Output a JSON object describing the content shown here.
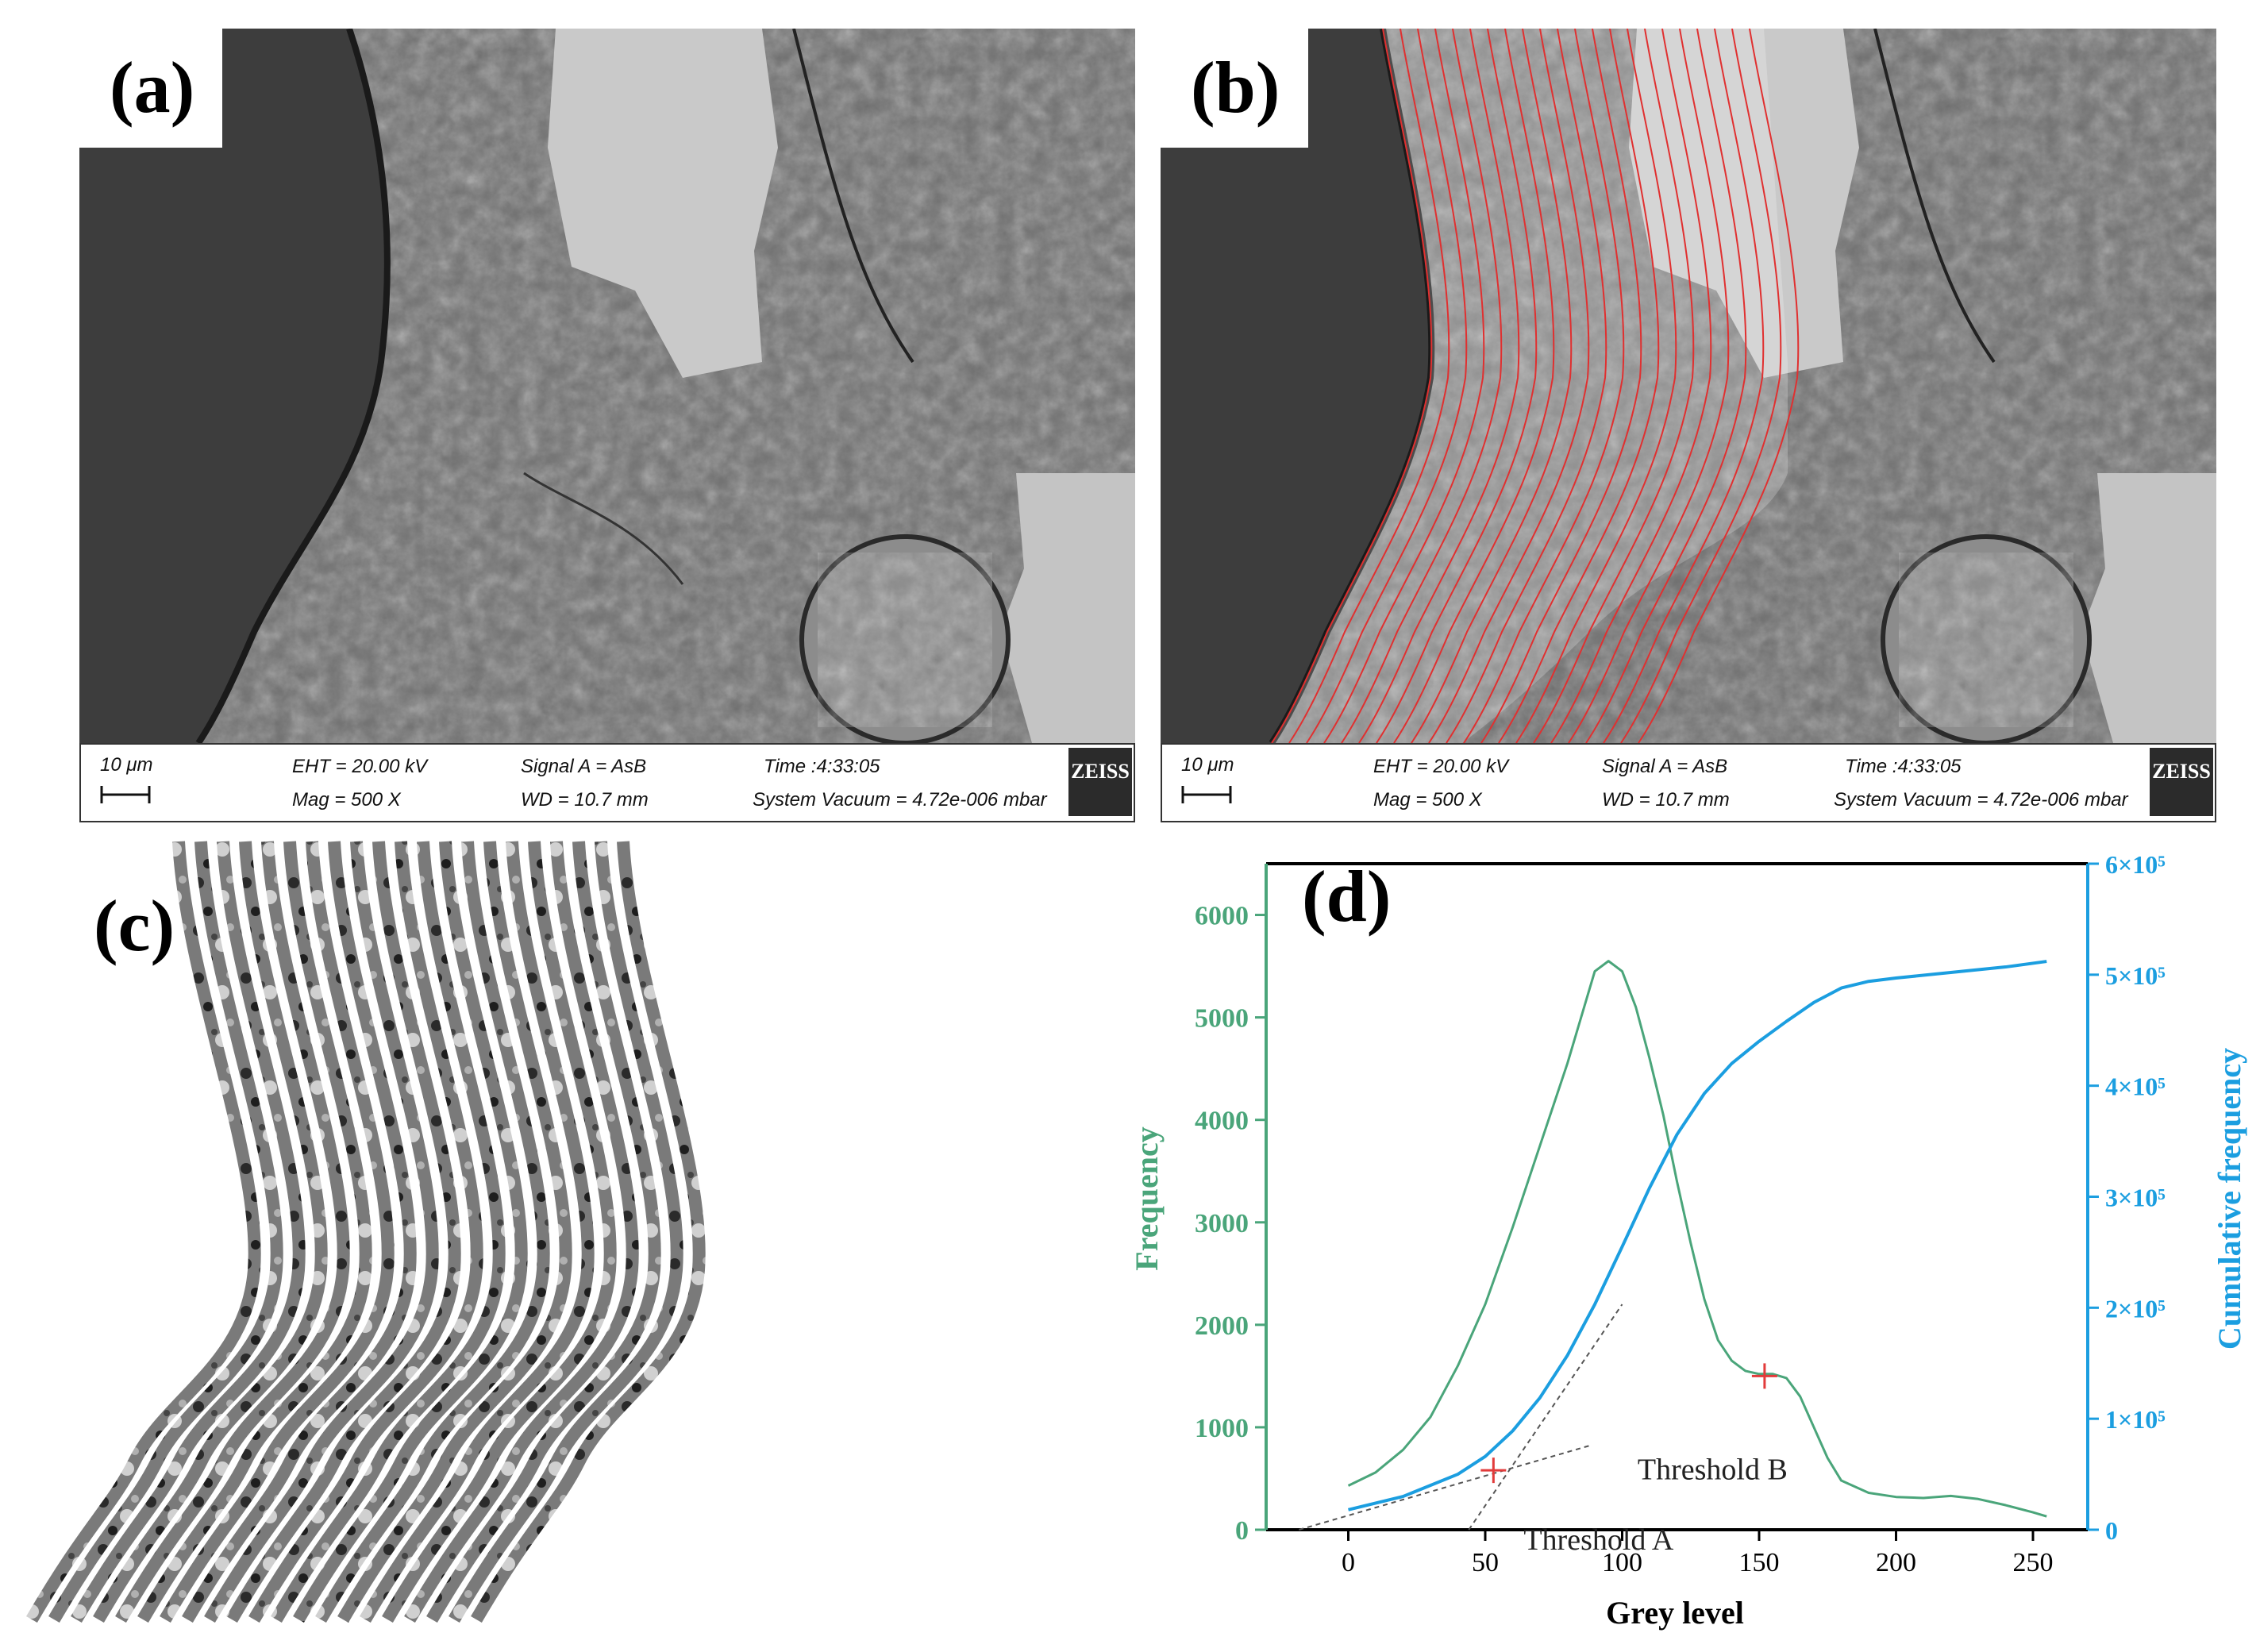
{
  "panels": {
    "a": {
      "label": "(a)"
    },
    "b": {
      "label": "(b)"
    },
    "c": {
      "label": "(c)"
    },
    "d": {
      "label": "(d)"
    }
  },
  "sem_databar": {
    "scale": "10 μm",
    "eht": "EHT = 20.00 kV",
    "signal": "Signal A = AsB",
    "time": "Time :4:33:05",
    "mag": "Mag =    500 X",
    "wd": "WD = 10.7 mm",
    "vacuum": "System Vacuum = 4.72e-006 mbar",
    "brand": "ZEISS"
  },
  "colors": {
    "frequency": "#4aa57a",
    "cumulative": "#1b9ee0",
    "threshold_marker": "#e23b3b",
    "overlay_lines": "#e03030"
  },
  "chart_data": {
    "type": "line",
    "xlabel": "Grey level",
    "ylabel": "Frequency",
    "y2label": "Cumulative frequency",
    "xlim": [
      -30,
      270
    ],
    "ylim": [
      0,
      6500
    ],
    "y2lim": [
      0,
      600000
    ],
    "xticks": [
      0,
      50,
      100,
      150,
      200,
      250
    ],
    "yticks": [
      0,
      1000,
      2000,
      3000,
      4000,
      5000,
      6000
    ],
    "y2ticks": [
      {
        "value": 0,
        "label": "0"
      },
      {
        "value": 100000,
        "label": "1×10⁵"
      },
      {
        "value": 200000,
        "label": "2×10⁵"
      },
      {
        "value": 300000,
        "label": "3×10⁵"
      },
      {
        "value": 400000,
        "label": "4×10⁵"
      },
      {
        "value": 500000,
        "label": "5×10⁵"
      },
      {
        "value": 600000,
        "label": "6×10⁵"
      }
    ],
    "series": [
      {
        "name": "Frequency",
        "axis": "left",
        "x": [
          0,
          10,
          20,
          30,
          40,
          50,
          60,
          70,
          80,
          85,
          90,
          95,
          100,
          105,
          110,
          115,
          120,
          125,
          130,
          135,
          140,
          145,
          150,
          155,
          160,
          165,
          170,
          175,
          180,
          190,
          200,
          210,
          220,
          230,
          240,
          250,
          255
        ],
        "y": [
          430,
          560,
          780,
          1100,
          1600,
          2200,
          2950,
          3750,
          4550,
          5000,
          5450,
          5550,
          5450,
          5100,
          4600,
          4050,
          3400,
          2800,
          2250,
          1850,
          1650,
          1550,
          1520,
          1520,
          1480,
          1300,
          1000,
          700,
          480,
          360,
          320,
          310,
          330,
          300,
          240,
          170,
          130
        ]
      },
      {
        "name": "Cumulative frequency",
        "axis": "right",
        "x": [
          0,
          20,
          40,
          50,
          60,
          70,
          80,
          90,
          100,
          110,
          120,
          130,
          140,
          150,
          160,
          170,
          180,
          190,
          200,
          220,
          240,
          255
        ],
        "y": [
          18000,
          30000,
          50000,
          66000,
          89000,
          119000,
          157000,
          203000,
          255000,
          308000,
          356000,
          393000,
          420000,
          440000,
          458000,
          475000,
          488000,
          494000,
          497000,
          502000,
          507000,
          512000
        ]
      }
    ],
    "annotations": [
      {
        "label": "Threshold A",
        "x": 53,
        "y": 580
      },
      {
        "label": "Threshold B",
        "x": 152,
        "y": 1500
      }
    ]
  }
}
